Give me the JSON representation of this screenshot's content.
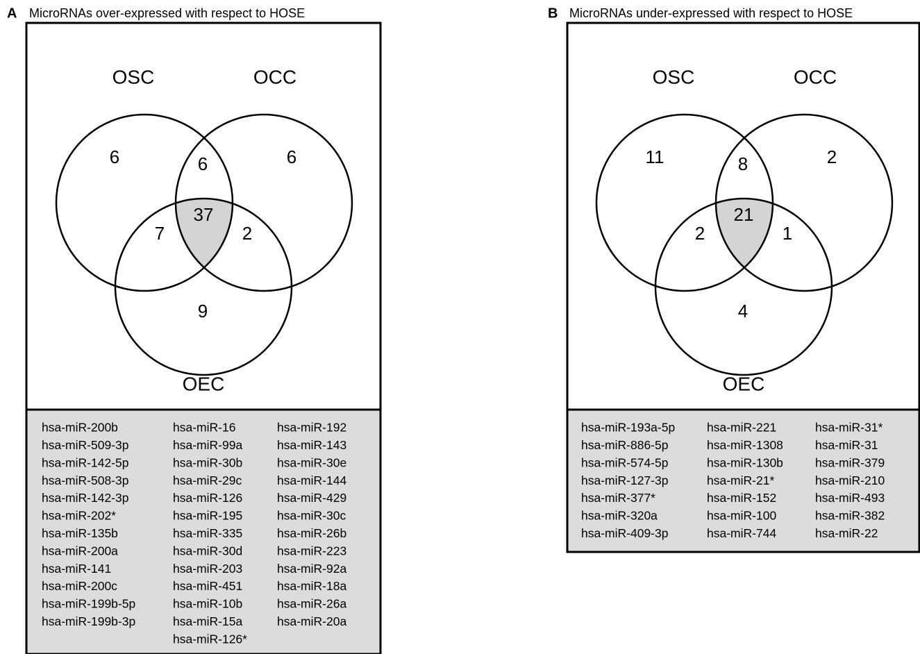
{
  "panels": [
    {
      "label": "A",
      "title": "MicroRNAs over-expressed with respect to HOSE",
      "sets": {
        "osc": "OSC",
        "occ": "OCC",
        "oec": "OEC"
      },
      "counts": {
        "osc_only": 6,
        "osc_occ": 6,
        "occ_only": 6,
        "osc_oec": 7,
        "all": 37,
        "occ_oec": 2,
        "oec_only": 9
      },
      "genes": [
        [
          "hsa-miR-200b",
          "hsa-miR-509-3p",
          "hsa-miR-142-5p",
          "hsa-miR-508-3p",
          "hsa-miR-142-3p",
          "hsa-miR-202*",
          "hsa-miR-135b",
          "hsa-miR-200a",
          "hsa-miR-141",
          "hsa-miR-200c",
          "hsa-miR-199b-5p",
          "hsa-miR-199b-3p"
        ],
        [
          "hsa-miR-16",
          "hsa-miR-99a",
          "hsa-miR-30b",
          "hsa-miR-29c",
          "hsa-miR-126",
          "hsa-miR-195",
          "hsa-miR-335",
          "hsa-miR-30d",
          "hsa-miR-203",
          "hsa-miR-451",
          "hsa-miR-10b",
          "hsa-miR-15a",
          "hsa-miR-126*"
        ],
        [
          "hsa-miR-192",
          "hsa-miR-143",
          "hsa-miR-30e",
          "hsa-miR-144",
          "hsa-miR-429",
          "hsa-miR-30c",
          "hsa-miR-26b",
          "hsa-miR-223",
          "hsa-miR-92a",
          "hsa-miR-18a",
          "hsa-miR-26a",
          "hsa-miR-20a"
        ]
      ]
    },
    {
      "label": "B",
      "title": "MicroRNAs under-expressed with respect to HOSE",
      "sets": {
        "osc": "OSC",
        "occ": "OCC",
        "oec": "OEC"
      },
      "counts": {
        "osc_only": 11,
        "osc_occ": 8,
        "occ_only": 2,
        "osc_oec": 2,
        "all": 21,
        "occ_oec": 1,
        "oec_only": 4
      },
      "genes": [
        [
          "hsa-miR-193a-5p",
          "hsa-miR-886-5p",
          "hsa-miR-574-5p",
          "hsa-miR-127-3p",
          "hsa-miR-377*",
          "hsa-miR-320a",
          "hsa-miR-409-3p"
        ],
        [
          "hsa-miR-221",
          "hsa-miR-1308",
          "hsa-miR-130b",
          "hsa-miR-21*",
          "hsa-miR-152",
          "hsa-miR-100",
          "hsa-miR-744"
        ],
        [
          "hsa-miR-31*",
          "hsa-miR-31",
          "hsa-miR-379",
          "hsa-miR-210",
          "hsa-miR-493",
          "hsa-miR-382",
          "hsa-miR-22"
        ]
      ]
    }
  ]
}
